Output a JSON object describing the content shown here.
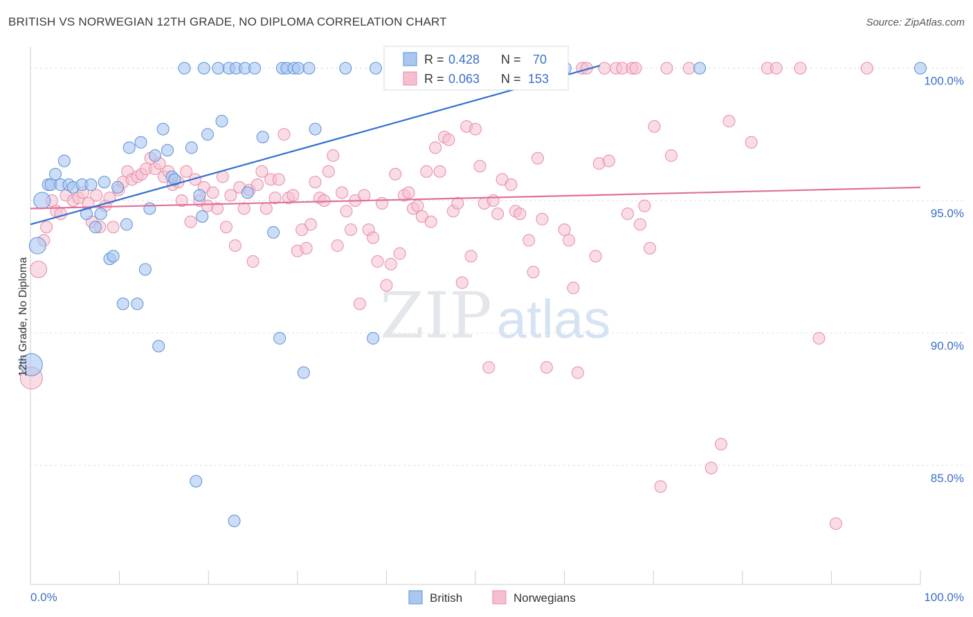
{
  "title": "BRITISH VS NORWEGIAN 12TH GRADE, NO DIPLOMA CORRELATION CHART",
  "source": "Source: ZipAtlas.com",
  "watermark": {
    "part1": "ZIP",
    "part2": "atlas"
  },
  "colors": {
    "british_fill": "#a9c7f1",
    "british_stroke": "#5b8fd6",
    "british_line": "#2f6fd1",
    "norwegian_fill": "#f6bfd0",
    "norwegian_stroke": "#e68aa7",
    "norwegian_line": "#e07098",
    "axis_text_blue": "#3a6fc4",
    "grid": "#d8dde6"
  },
  "legend_top": {
    "british": {
      "r_label": "R = ",
      "r_value": "0.428",
      "n_label": "N = ",
      "n_value": "70"
    },
    "norwegian": {
      "r_label": "R = ",
      "r_value": "0.063",
      "n_label": "N = ",
      "n_value": "153"
    }
  },
  "legend_bottom": {
    "british": "British",
    "norwegian": "Norwegians"
  },
  "chart_data": {
    "type": "scatter",
    "title": "BRITISH VS NORWEGIAN 12TH GRADE, NO DIPLOMA CORRELATION CHART",
    "xlabel": "",
    "ylabel": "12th Grade, No Diploma",
    "xlim": [
      0,
      100
    ],
    "ylim": [
      80.5,
      100.8
    ],
    "x_tick_labels": [
      "0.0%",
      "100.0%"
    ],
    "y_ticks": [
      100,
      95,
      90,
      85
    ],
    "y_tick_labels": [
      "100.0%",
      "95.0%",
      "90.0%",
      "85.0%"
    ],
    "grid": true,
    "legend_placement": "top-center and bottom-center",
    "series": [
      {
        "name": "British",
        "R": 0.428,
        "N": 70,
        "trend": {
          "x": [
            0,
            64
          ],
          "y": [
            94.1,
            100.1
          ]
        },
        "points": [
          {
            "x": 0.1,
            "y": 88.8,
            "s": "l"
          },
          {
            "x": 0.8,
            "y": 93.3,
            "s": "m"
          },
          {
            "x": 1.3,
            "y": 95.0,
            "s": "m"
          },
          {
            "x": 2.0,
            "y": 95.6
          },
          {
            "x": 2.3,
            "y": 95.6
          },
          {
            "x": 2.8,
            "y": 96.0
          },
          {
            "x": 3.4,
            "y": 95.6
          },
          {
            "x": 3.8,
            "y": 96.5
          },
          {
            "x": 4.3,
            "y": 95.6
          },
          {
            "x": 4.8,
            "y": 95.5
          },
          {
            "x": 5.8,
            "y": 95.6
          },
          {
            "x": 6.3,
            "y": 94.5
          },
          {
            "x": 6.8,
            "y": 95.6
          },
          {
            "x": 7.3,
            "y": 94.0
          },
          {
            "x": 7.9,
            "y": 94.5
          },
          {
            "x": 8.3,
            "y": 95.7
          },
          {
            "x": 8.9,
            "y": 92.8
          },
          {
            "x": 9.3,
            "y": 92.9
          },
          {
            "x": 9.8,
            "y": 95.5
          },
          {
            "x": 10.4,
            "y": 91.1
          },
          {
            "x": 10.8,
            "y": 94.1
          },
          {
            "x": 11.1,
            "y": 97.0
          },
          {
            "x": 12.0,
            "y": 91.1
          },
          {
            "x": 12.4,
            "y": 97.2
          },
          {
            "x": 12.9,
            "y": 92.4
          },
          {
            "x": 13.4,
            "y": 94.7
          },
          {
            "x": 14.0,
            "y": 96.7
          },
          {
            "x": 14.4,
            "y": 89.5
          },
          {
            "x": 14.9,
            "y": 97.7
          },
          {
            "x": 15.4,
            "y": 96.9
          },
          {
            "x": 15.9,
            "y": 95.9
          },
          {
            "x": 16.2,
            "y": 95.8
          },
          {
            "x": 17.3,
            "y": 100.0
          },
          {
            "x": 18.1,
            "y": 97.0
          },
          {
            "x": 18.6,
            "y": 84.4
          },
          {
            "x": 19.0,
            "y": 95.2
          },
          {
            "x": 19.3,
            "y": 94.4
          },
          {
            "x": 19.5,
            "y": 100.0
          },
          {
            "x": 19.9,
            "y": 97.5
          },
          {
            "x": 21.1,
            "y": 100.0
          },
          {
            "x": 21.5,
            "y": 98.0
          },
          {
            "x": 22.3,
            "y": 100.0
          },
          {
            "x": 22.9,
            "y": 82.9
          },
          {
            "x": 23.1,
            "y": 100.0
          },
          {
            "x": 24.1,
            "y": 100.0
          },
          {
            "x": 24.4,
            "y": 95.3
          },
          {
            "x": 25.2,
            "y": 100.0
          },
          {
            "x": 26.1,
            "y": 97.4
          },
          {
            "x": 27.3,
            "y": 93.8
          },
          {
            "x": 28.0,
            "y": 89.8
          },
          {
            "x": 28.3,
            "y": 100.0
          },
          {
            "x": 28.8,
            "y": 100.0
          },
          {
            "x": 29.6,
            "y": 100.0
          },
          {
            "x": 30.1,
            "y": 100.0
          },
          {
            "x": 30.7,
            "y": 88.5
          },
          {
            "x": 31.3,
            "y": 100.0
          },
          {
            "x": 32.0,
            "y": 97.7
          },
          {
            "x": 35.4,
            "y": 100.0
          },
          {
            "x": 38.5,
            "y": 89.8
          },
          {
            "x": 38.8,
            "y": 100.0
          },
          {
            "x": 40.4,
            "y": 100.0
          },
          {
            "x": 41.2,
            "y": 100.0
          },
          {
            "x": 42.0,
            "y": 100.0
          },
          {
            "x": 44.1,
            "y": 100.0
          },
          {
            "x": 47.0,
            "y": 100.0
          },
          {
            "x": 51.0,
            "y": 100.0
          },
          {
            "x": 55.1,
            "y": 100.0
          },
          {
            "x": 60.1,
            "y": 100.0
          },
          {
            "x": 75.2,
            "y": 100.0
          },
          {
            "x": 100.0,
            "y": 100.0
          }
        ]
      },
      {
        "name": "Norwegians",
        "R": 0.063,
        "N": 153,
        "trend": {
          "x": [
            0,
            100
          ],
          "y": [
            94.7,
            95.5
          ]
        },
        "points": [
          {
            "x": 0.1,
            "y": 88.3,
            "s": "l"
          },
          {
            "x": 0.9,
            "y": 92.4,
            "s": "m"
          },
          {
            "x": 1.5,
            "y": 93.5
          },
          {
            "x": 1.8,
            "y": 94.0
          },
          {
            "x": 2.4,
            "y": 95.0
          },
          {
            "x": 2.9,
            "y": 94.6
          },
          {
            "x": 3.4,
            "y": 94.5
          },
          {
            "x": 4.0,
            "y": 95.2
          },
          {
            "x": 4.8,
            "y": 95.0
          },
          {
            "x": 5.4,
            "y": 95.1
          },
          {
            "x": 5.9,
            "y": 95.3
          },
          {
            "x": 6.5,
            "y": 94.9
          },
          {
            "x": 6.9,
            "y": 94.2
          },
          {
            "x": 7.4,
            "y": 95.2
          },
          {
            "x": 7.8,
            "y": 94.0
          },
          {
            "x": 8.4,
            "y": 94.8
          },
          {
            "x": 8.9,
            "y": 95.1
          },
          {
            "x": 9.3,
            "y": 94.0
          },
          {
            "x": 9.9,
            "y": 95.4
          },
          {
            "x": 10.4,
            "y": 95.7
          },
          {
            "x": 10.9,
            "y": 96.1
          },
          {
            "x": 11.4,
            "y": 95.8
          },
          {
            "x": 12.0,
            "y": 95.9
          },
          {
            "x": 12.5,
            "y": 96.0
          },
          {
            "x": 13.0,
            "y": 96.2
          },
          {
            "x": 13.5,
            "y": 96.6
          },
          {
            "x": 14.0,
            "y": 96.2
          },
          {
            "x": 14.5,
            "y": 96.4
          },
          {
            "x": 15.0,
            "y": 95.9
          },
          {
            "x": 15.5,
            "y": 96.1
          },
          {
            "x": 16.0,
            "y": 95.6
          },
          {
            "x": 16.6,
            "y": 95.7
          },
          {
            "x": 17.0,
            "y": 95.0
          },
          {
            "x": 17.5,
            "y": 96.1
          },
          {
            "x": 18.0,
            "y": 94.2
          },
          {
            "x": 18.5,
            "y": 95.8
          },
          {
            "x": 19.0,
            "y": 95.0
          },
          {
            "x": 19.5,
            "y": 95.5
          },
          {
            "x": 19.9,
            "y": 94.8
          },
          {
            "x": 20.5,
            "y": 95.3
          },
          {
            "x": 21.0,
            "y": 94.7
          },
          {
            "x": 21.6,
            "y": 95.9
          },
          {
            "x": 22.0,
            "y": 94.0
          },
          {
            "x": 22.5,
            "y": 95.2
          },
          {
            "x": 23.0,
            "y": 93.3
          },
          {
            "x": 23.5,
            "y": 95.5
          },
          {
            "x": 24.0,
            "y": 94.7
          },
          {
            "x": 24.6,
            "y": 95.4
          },
          {
            "x": 25.0,
            "y": 92.7
          },
          {
            "x": 25.5,
            "y": 95.6
          },
          {
            "x": 26.0,
            "y": 96.1
          },
          {
            "x": 26.5,
            "y": 94.7
          },
          {
            "x": 27.0,
            "y": 95.8
          },
          {
            "x": 27.5,
            "y": 95.1
          },
          {
            "x": 27.9,
            "y": 95.8
          },
          {
            "x": 28.5,
            "y": 97.5
          },
          {
            "x": 29.0,
            "y": 95.1
          },
          {
            "x": 29.5,
            "y": 95.2
          },
          {
            "x": 30.0,
            "y": 93.1
          },
          {
            "x": 30.5,
            "y": 93.9
          },
          {
            "x": 31.0,
            "y": 93.2
          },
          {
            "x": 31.5,
            "y": 94.1
          },
          {
            "x": 32.0,
            "y": 95.7
          },
          {
            "x": 32.5,
            "y": 95.1
          },
          {
            "x": 33.0,
            "y": 95.0
          },
          {
            "x": 33.5,
            "y": 96.1
          },
          {
            "x": 34.0,
            "y": 96.7
          },
          {
            "x": 34.5,
            "y": 93.3
          },
          {
            "x": 35.0,
            "y": 95.3
          },
          {
            "x": 35.5,
            "y": 94.6
          },
          {
            "x": 36.0,
            "y": 93.9
          },
          {
            "x": 36.5,
            "y": 95.0
          },
          {
            "x": 37.0,
            "y": 91.1
          },
          {
            "x": 37.5,
            "y": 95.2
          },
          {
            "x": 38.0,
            "y": 93.9
          },
          {
            "x": 38.5,
            "y": 93.6
          },
          {
            "x": 39.0,
            "y": 92.7
          },
          {
            "x": 39.5,
            "y": 94.9
          },
          {
            "x": 40.0,
            "y": 91.8
          },
          {
            "x": 40.5,
            "y": 92.6
          },
          {
            "x": 41.0,
            "y": 96.0
          },
          {
            "x": 41.5,
            "y": 93.0
          },
          {
            "x": 42.0,
            "y": 95.2
          },
          {
            "x": 42.5,
            "y": 95.3
          },
          {
            "x": 43.0,
            "y": 94.7
          },
          {
            "x": 43.5,
            "y": 94.8
          },
          {
            "x": 44.0,
            "y": 94.4
          },
          {
            "x": 44.5,
            "y": 96.1
          },
          {
            "x": 45.0,
            "y": 94.2
          },
          {
            "x": 45.5,
            "y": 97.0
          },
          {
            "x": 46.0,
            "y": 96.1
          },
          {
            "x": 46.5,
            "y": 97.4
          },
          {
            "x": 47.0,
            "y": 97.3
          },
          {
            "x": 47.5,
            "y": 94.6
          },
          {
            "x": 48.0,
            "y": 94.9
          },
          {
            "x": 48.5,
            "y": 91.9
          },
          {
            "x": 49.0,
            "y": 97.8
          },
          {
            "x": 49.5,
            "y": 92.9
          },
          {
            "x": 50.0,
            "y": 97.7
          },
          {
            "x": 50.5,
            "y": 96.3
          },
          {
            "x": 51.0,
            "y": 94.9
          },
          {
            "x": 51.5,
            "y": 88.7
          },
          {
            "x": 52.0,
            "y": 95.0
          },
          {
            "x": 52.5,
            "y": 94.5
          },
          {
            "x": 53.0,
            "y": 95.8
          },
          {
            "x": 54.0,
            "y": 95.6
          },
          {
            "x": 54.5,
            "y": 94.6
          },
          {
            "x": 55.0,
            "y": 94.5
          },
          {
            "x": 56.0,
            "y": 93.5
          },
          {
            "x": 56.5,
            "y": 92.3
          },
          {
            "x": 57.0,
            "y": 96.6
          },
          {
            "x": 57.5,
            "y": 94.3
          },
          {
            "x": 58.0,
            "y": 88.7
          },
          {
            "x": 60.0,
            "y": 93.9
          },
          {
            "x": 60.5,
            "y": 93.5
          },
          {
            "x": 61.0,
            "y": 91.7
          },
          {
            "x": 61.5,
            "y": 88.5
          },
          {
            "x": 62.0,
            "y": 100.0
          },
          {
            "x": 62.5,
            "y": 100.0
          },
          {
            "x": 63.5,
            "y": 92.9
          },
          {
            "x": 63.9,
            "y": 96.4
          },
          {
            "x": 64.5,
            "y": 100.0
          },
          {
            "x": 65.0,
            "y": 96.5
          },
          {
            "x": 65.8,
            "y": 100.0
          },
          {
            "x": 66.5,
            "y": 100.0
          },
          {
            "x": 67.1,
            "y": 94.5
          },
          {
            "x": 67.6,
            "y": 100.0
          },
          {
            "x": 68.0,
            "y": 100.0
          },
          {
            "x": 68.5,
            "y": 94.1
          },
          {
            "x": 69.0,
            "y": 94.8
          },
          {
            "x": 69.6,
            "y": 93.2
          },
          {
            "x": 70.1,
            "y": 97.8
          },
          {
            "x": 70.8,
            "y": 84.2
          },
          {
            "x": 71.5,
            "y": 100.0
          },
          {
            "x": 72.0,
            "y": 96.7
          },
          {
            "x": 74.0,
            "y": 100.0
          },
          {
            "x": 76.5,
            "y": 84.9
          },
          {
            "x": 77.6,
            "y": 85.8
          },
          {
            "x": 78.5,
            "y": 98.0
          },
          {
            "x": 81.0,
            "y": 97.2
          },
          {
            "x": 82.8,
            "y": 100.0
          },
          {
            "x": 83.8,
            "y": 100.0
          },
          {
            "x": 86.5,
            "y": 100.0
          },
          {
            "x": 88.6,
            "y": 89.8
          },
          {
            "x": 90.5,
            "y": 82.8
          },
          {
            "x": 94.0,
            "y": 100.0
          }
        ]
      }
    ]
  }
}
